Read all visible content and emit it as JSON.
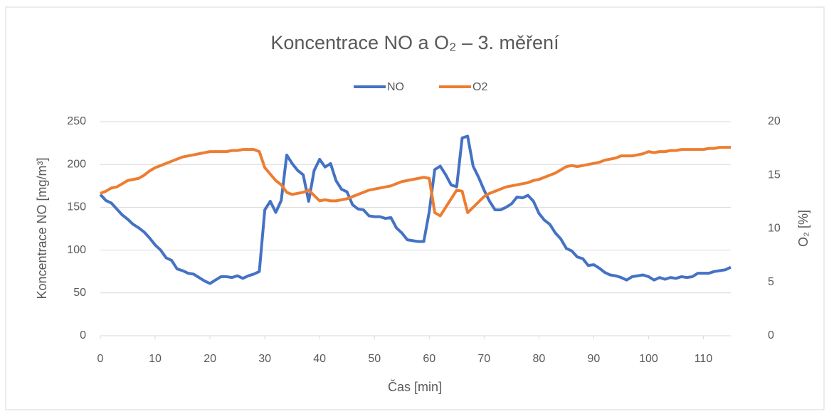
{
  "chart_data": {
    "type": "line",
    "title": "Koncentrace NO a O₂ – 3. měření",
    "x_label": "Čas [min]",
    "y_label": "Koncentrace NO [mg/m³]",
    "y2_label": "O₂ [%]",
    "x": [
      0,
      1,
      2,
      3,
      4,
      5,
      6,
      7,
      8,
      9,
      10,
      11,
      12,
      13,
      14,
      15,
      16,
      17,
      18,
      19,
      20,
      21,
      22,
      23,
      24,
      25,
      26,
      27,
      28,
      29,
      30,
      31,
      32,
      33,
      34,
      35,
      36,
      37,
      38,
      39,
      40,
      41,
      42,
      43,
      44,
      45,
      46,
      47,
      48,
      49,
      50,
      51,
      52,
      53,
      54,
      55,
      56,
      57,
      58,
      59,
      60,
      61,
      62,
      63,
      64,
      65,
      66,
      67,
      68,
      69,
      70,
      71,
      72,
      73,
      74,
      75,
      76,
      77,
      78,
      79,
      80,
      81,
      82,
      83,
      84,
      85,
      86,
      87,
      88,
      89,
      90,
      91,
      92,
      93,
      94,
      95,
      96,
      97,
      98,
      99,
      100,
      101,
      102,
      103,
      104,
      105,
      106,
      107,
      108,
      109,
      110,
      111,
      112,
      113,
      114,
      115
    ],
    "series": [
      {
        "name": "NO",
        "color": "#4472c4",
        "values": [
          165,
          158,
          155,
          148,
          141,
          136,
          130,
          126,
          121,
          114,
          106,
          100,
          91,
          88,
          78,
          76,
          73,
          72,
          68,
          64,
          61,
          65,
          69,
          69,
          68,
          70,
          67,
          70,
          72,
          75,
          147,
          157,
          144,
          158,
          211,
          201,
          193,
          188,
          157,
          193,
          206,
          197,
          201,
          181,
          171,
          168,
          153,
          148,
          147,
          140,
          139,
          139,
          137,
          138,
          126,
          120,
          112,
          111,
          110,
          110,
          145,
          194,
          198,
          188,
          176,
          174,
          231,
          233,
          198,
          185,
          170,
          157,
          147,
          147,
          150,
          154,
          162,
          161,
          164,
          157,
          143,
          135,
          130,
          120,
          113,
          102,
          99,
          92,
          90,
          82,
          83,
          79,
          74,
          71,
          70,
          68,
          65,
          69,
          70,
          71,
          69,
          65,
          68,
          66,
          68,
          67,
          69,
          68,
          69,
          73,
          73,
          73,
          75,
          76,
          77,
          80
        ]
      },
      {
        "name": "O2",
        "color": "#ed7d31",
        "axis": "y2",
        "values": [
          13.3,
          13.5,
          13.8,
          13.9,
          14.2,
          14.5,
          14.6,
          14.7,
          15.0,
          15.4,
          15.7,
          15.9,
          16.1,
          16.3,
          16.5,
          16.7,
          16.8,
          16.9,
          17.0,
          17.1,
          17.2,
          17.2,
          17.2,
          17.2,
          17.3,
          17.3,
          17.4,
          17.4,
          17.4,
          17.2,
          15.7,
          15.1,
          14.5,
          14.1,
          13.4,
          13.2,
          13.3,
          13.4,
          13.6,
          13.1,
          12.6,
          12.7,
          12.6,
          12.6,
          12.7,
          12.8,
          13.0,
          13.2,
          13.4,
          13.6,
          13.7,
          13.8,
          13.9,
          14.0,
          14.2,
          14.4,
          14.5,
          14.6,
          14.7,
          14.8,
          14.7,
          11.5,
          11.2,
          12.0,
          12.8,
          13.6,
          13.5,
          11.5,
          12.0,
          12.5,
          13.0,
          13.3,
          13.5,
          13.7,
          13.9,
          14.0,
          14.1,
          14.2,
          14.3,
          14.5,
          14.6,
          14.8,
          15.0,
          15.2,
          15.5,
          15.8,
          15.9,
          15.8,
          15.9,
          16.0,
          16.1,
          16.2,
          16.4,
          16.5,
          16.6,
          16.8,
          16.8,
          16.8,
          16.9,
          17.0,
          17.2,
          17.1,
          17.2,
          17.2,
          17.3,
          17.3,
          17.4,
          17.4,
          17.4,
          17.4,
          17.4,
          17.5,
          17.5,
          17.6,
          17.6,
          17.6
        ]
      }
    ],
    "xlim": [
      0,
      115
    ],
    "xticks": [
      0,
      10,
      20,
      30,
      40,
      50,
      60,
      70,
      80,
      90,
      100,
      110
    ],
    "ylim": [
      0,
      250
    ],
    "yticks": [
      0,
      50,
      100,
      150,
      200,
      250
    ],
    "y2lim": [
      0,
      20
    ],
    "y2ticks": [
      0,
      5,
      10,
      15,
      20
    ],
    "grid": true,
    "legend": "top"
  }
}
